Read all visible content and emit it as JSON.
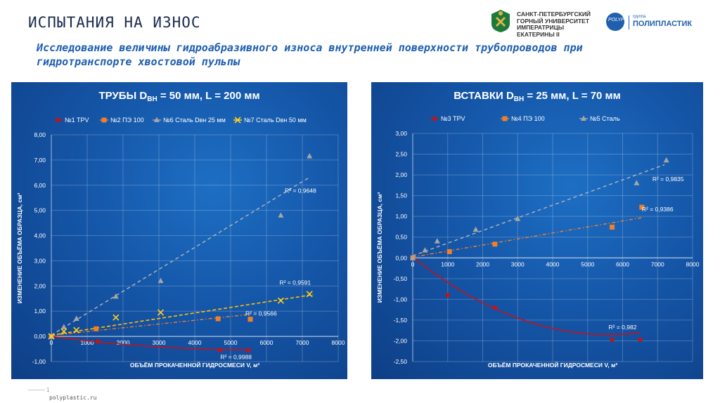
{
  "slide": {
    "title": "ИСПЫТАНИЯ НА ИЗНОС",
    "subtitle": "Исследование величины гидроабразивного износа внутренней поверхности трубопроводов при гидротранспорте хвостовой пульпы",
    "university_name": "САНКТ-ПЕТЕРБУРГСКИЙ ГОРНЫЙ УНИВЕРСИТЕТ ИМПЕРАТРИЦЫ ЕКАТЕРИНЫ II",
    "company_small": "группа",
    "company_name": "ПОЛИПЛАСТИК",
    "company_emblem_text": "POLYPLASTIC",
    "page_number": "1",
    "url": "polyplastic.ru"
  },
  "chart_data": [
    {
      "type": "scatter",
      "title_main": "ТРУБЫ D",
      "title_sub": "ВН",
      "title_rest": " = 50 мм, L = 200 мм",
      "xlabel": "ОБЪЁМ ПРОКАЧЕННОЙ ГИДРОСМЕСИ V, м³",
      "ylabel": "ИЗМЕНЕНИЕ ОБЪЁМА ОБРАЗЦА, см³",
      "xlim": [
        0,
        8000
      ],
      "ylim": [
        -1,
        8
      ],
      "xticks": [
        0,
        1000,
        2000,
        3000,
        4000,
        5000,
        6000,
        7000,
        8000
      ],
      "yticks": [
        -1,
        0,
        1,
        2,
        3,
        4,
        5,
        6,
        7,
        8
      ],
      "xtick_labels": [
        "0",
        "1000",
        "2000",
        "3000",
        "4000",
        "5000",
        "6000",
        "7000",
        "8000"
      ],
      "ytick_labels": [
        "-1,00",
        "0,00",
        "1,00",
        "2,00",
        "3,00",
        "4,00",
        "5,00",
        "6,00",
        "7,00",
        "8,00"
      ],
      "grid": true,
      "legend_position": "top",
      "series": [
        {
          "name": "№1 TPV",
          "color": "#c0141c",
          "marker": "circle",
          "x": [
            0,
            1300,
            4700,
            5500
          ],
          "y": [
            0,
            -0.2,
            -0.55,
            -0.55
          ],
          "fit": {
            "kind": "poly",
            "coef": [
              -0.001,
              -0.00019,
              1.7e-08
            ],
            "x_range": [
              0,
              5500
            ],
            "dash": "none",
            "width": 1.6,
            "color": "#c0141c"
          },
          "r2": "R² = 0,9988",
          "r2_at": [
            5150,
            -0.9
          ]
        },
        {
          "name": "№2 ПЭ 100",
          "color": "#f07f2a",
          "marker": "square",
          "x": [
            0,
            1250,
            4650,
            5550
          ],
          "y": [
            0,
            0.3,
            0.7,
            0.68
          ],
          "fit": {
            "kind": "poly",
            "coef": [
              0.04,
              0.00015,
              0
            ],
            "x_range": [
              0,
              5600
            ],
            "dash": "5,3,1.5,3",
            "width": 1.4,
            "color": "#f07f2a"
          },
          "r2": "R² = 0,9566",
          "r2_at": [
            5850,
            0.82
          ]
        },
        {
          "name": "№6 Сталь Dвн 25 мм",
          "color": "#a6a6a6",
          "marker": "triangle",
          "x": [
            0,
            350,
            700,
            1800,
            3050,
            6400,
            7200
          ],
          "y": [
            0,
            0.37,
            0.7,
            1.58,
            2.2,
            4.8,
            7.15
          ],
          "fit": {
            "kind": "poly",
            "coef": [
              0.05,
              0.00087,
              0
            ],
            "x_range": [
              0,
              7200
            ],
            "dash": "5,4",
            "width": 1.4,
            "color": "#b5b5b5"
          },
          "r2": "R² = 0,9648",
          "r2_at": [
            6950,
            5.7
          ]
        },
        {
          "name": "№7 Сталь Dвн 50 мм",
          "color": "#ffd21f",
          "marker": "x",
          "x": [
            0,
            350,
            700,
            1800,
            3050,
            6400,
            7200
          ],
          "y": [
            0,
            0.2,
            0.25,
            0.75,
            0.95,
            1.42,
            1.68
          ],
          "fit": {
            "kind": "poly",
            "coef": [
              0.05,
              0.00022,
              0
            ],
            "x_range": [
              0,
              7300
            ],
            "dash": "5,3",
            "width": 1.6,
            "color": "#ffc000"
          },
          "r2": "R² = 0,9591",
          "r2_at": [
            6800,
            2.05
          ]
        }
      ]
    },
    {
      "type": "scatter",
      "title_main": "ВСТАВКИ D",
      "title_sub": "ВН",
      "title_rest": " = 25 мм, L = 70 мм",
      "xlabel": "ОБЪЁМ ПРОКАЧЕННОЙ ГИДРОСМЕСИ V, м³",
      "ylabel": "ИЗМЕНЕНИЕ ОБЪЁМА ОБРАЗЦА, см³",
      "xlim": [
        0,
        8000
      ],
      "ylim": [
        -2.5,
        3
      ],
      "xticks": [
        0,
        1000,
        2000,
        3000,
        4000,
        5000,
        6000,
        7000,
        8000
      ],
      "yticks": [
        -2.5,
        -2,
        -1.5,
        -1,
        -0.5,
        0,
        0.5,
        1,
        1.5,
        2,
        2.5,
        3
      ],
      "xtick_labels": [
        "0",
        "1000",
        "2000",
        "3000",
        "4000",
        "5000",
        "6000",
        "7000",
        "8000"
      ],
      "ytick_labels": [
        "-2,50",
        "-2,00",
        "-1,50",
        "-1,00",
        "-0,50",
        "0,00",
        "0,50",
        "1,00",
        "1,50",
        "2,00",
        "2,50",
        "3,00"
      ],
      "grid": true,
      "legend_position": "top",
      "series": [
        {
          "name": "№3 TPV",
          "color": "#c0141c",
          "marker": "circle",
          "x": [
            0,
            1000,
            2350,
            5700,
            6500
          ],
          "y": [
            0,
            -0.9,
            -1.2,
            -1.97,
            -1.97
          ],
          "fit": {
            "kind": "poly",
            "coef": [
              0.02,
              -0.00067,
              6e-08
            ],
            "x_range": [
              0,
              6500
            ],
            "dash": "none",
            "width": 1.6,
            "color": "#c0141c"
          },
          "r2": "R² = 0,982",
          "r2_at": [
            6000,
            -1.72
          ]
        },
        {
          "name": "№4 ПЭ 100",
          "color": "#f07f2a",
          "marker": "square",
          "x": [
            0,
            1050,
            2350,
            5700,
            6550
          ],
          "y": [
            0,
            0.15,
            0.33,
            0.74,
            1.22
          ],
          "fit": {
            "kind": "poly",
            "coef": [
              0.02,
              0.000145,
              0
            ],
            "x_range": [
              0,
              6600
            ],
            "dash": "5,3,1.5,3",
            "width": 1.4,
            "color": "#f07f2a"
          },
          "r2": "R² = 0,9386",
          "r2_at": [
            7000,
            1.12
          ]
        },
        {
          "name": "№5 Сталь",
          "color": "#a6a6a6",
          "marker": "triangle",
          "x": [
            0,
            350,
            700,
            1800,
            3000,
            6400,
            7250
          ],
          "y": [
            0,
            0.18,
            0.4,
            0.68,
            0.94,
            1.8,
            2.35
          ],
          "fit": {
            "kind": "poly",
            "coef": [
              0.05,
              0.000305,
              0
            ],
            "x_range": [
              0,
              7200
            ],
            "dash": "5,4",
            "width": 1.4,
            "color": "#b5b5b5"
          },
          "r2": "R² = 0,9835",
          "r2_at": [
            7300,
            1.85
          ]
        }
      ]
    }
  ]
}
